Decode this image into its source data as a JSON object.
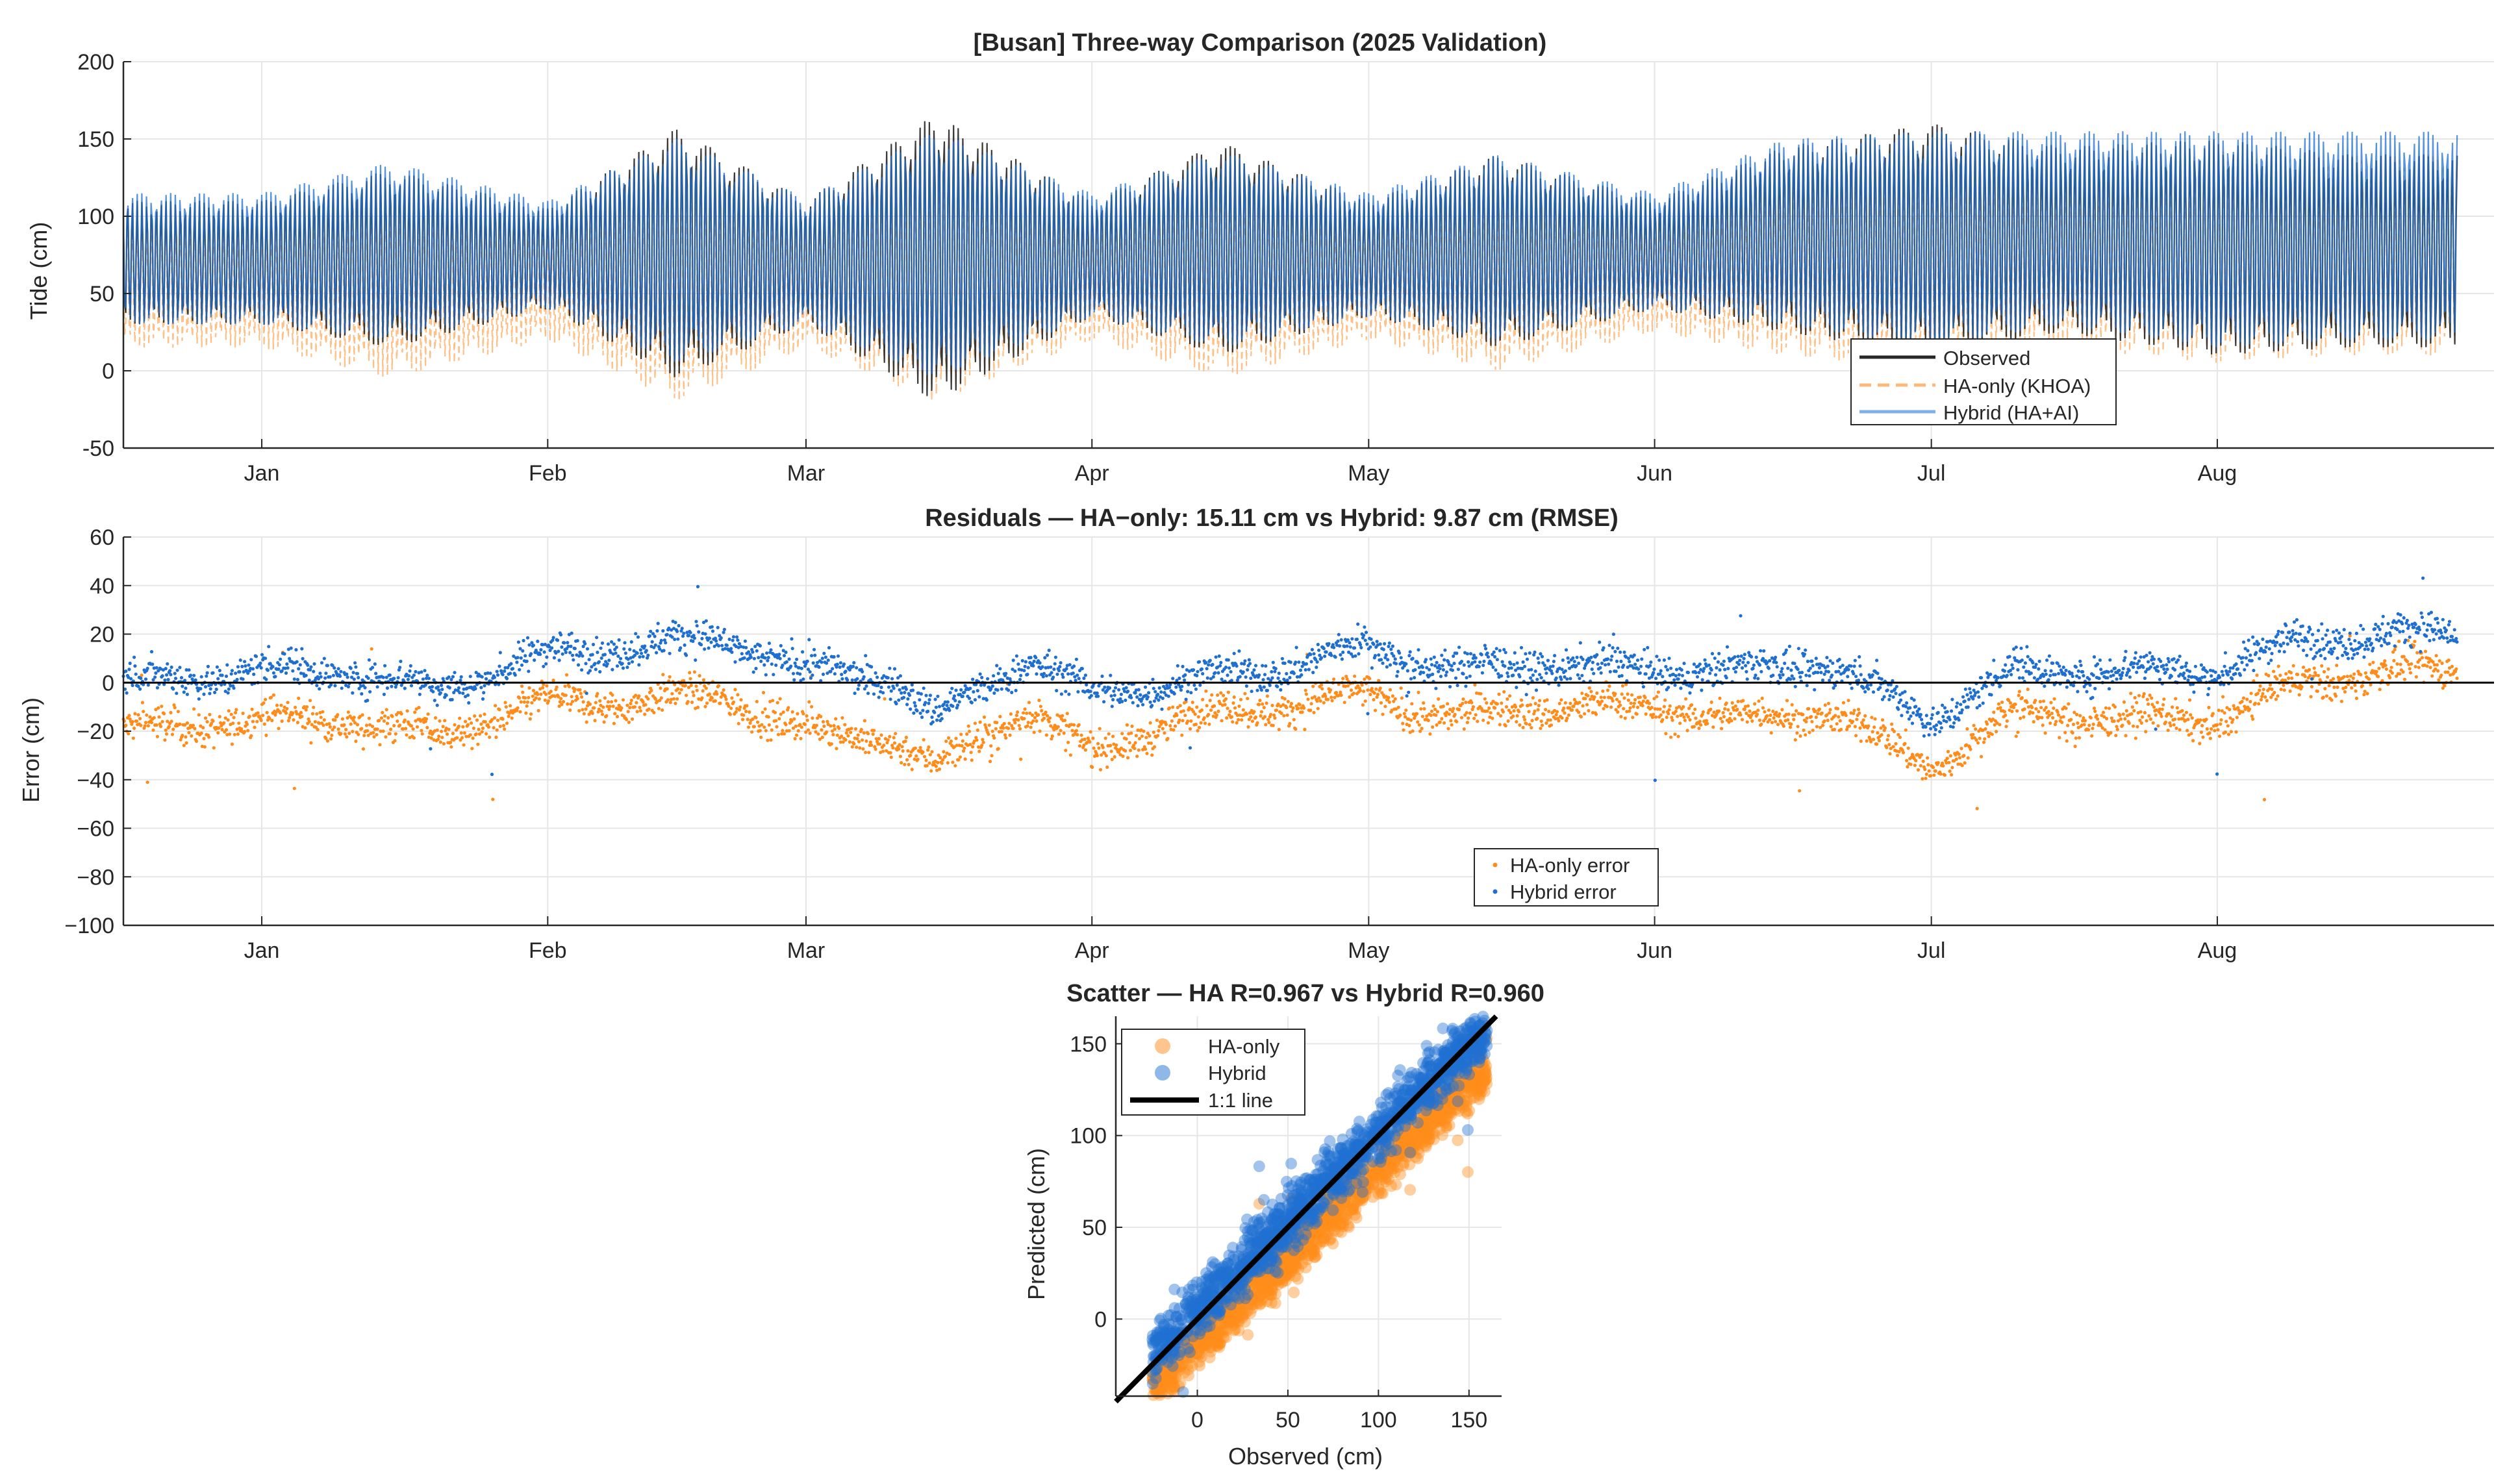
{
  "colors": {
    "observed": "#262626",
    "ha_only": "#ff8c1a",
    "hybrid": "#1f6fd1",
    "grid": "#e6e6e6",
    "axis": "#262626"
  },
  "chart_data": [
    {
      "id": "timeseries",
      "type": "line",
      "title": "[Busan] Three-way Comparison (2025 Validation)",
      "xlabel": "",
      "ylabel": "Tide (cm)",
      "ylim": [
        -50,
        200
      ],
      "yticks": [
        -50,
        0,
        50,
        100,
        150,
        200
      ],
      "x_dates": [
        "2025-01-01",
        "2025-02-01",
        "2025-03-01",
        "2025-04-01",
        "2025-05-01",
        "2025-06-01",
        "2025-07-01",
        "2025-08-01"
      ],
      "xticklabels": [
        "Jan",
        "Feb",
        "Mar",
        "Apr",
        "May",
        "Jun",
        "Jul",
        "Aug"
      ],
      "xlim": [
        "2024-12-17",
        "2025-08-31"
      ],
      "grid": true,
      "legend_position": "bottom-right",
      "series": [
        {
          "name": "Observed",
          "style": "solid",
          "x": [
            "2025-01-01",
            "2025-01-15",
            "2025-02-01",
            "2025-02-15",
            "2025-03-01",
            "2025-03-15",
            "2025-04-01",
            "2025-04-15",
            "2025-05-01",
            "2025-05-15",
            "2025-06-01",
            "2025-06-15",
            "2025-07-01",
            "2025-07-15",
            "2025-08-01",
            "2025-08-15"
          ],
          "upper": [
            110,
            130,
            105,
            157,
            110,
            166,
            110,
            148,
            110,
            140,
            110,
            145,
            160,
            145,
            150,
            140
          ],
          "lower": [
            30,
            15,
            40,
            -5,
            30,
            -20,
            35,
            10,
            35,
            15,
            40,
            25,
            10,
            25,
            10,
            15
          ]
        },
        {
          "name": "HA-only (KHOA)",
          "style": "dashed",
          "x": [
            "2025-01-01",
            "2025-01-15",
            "2025-02-01",
            "2025-02-15",
            "2025-03-01",
            "2025-03-15",
            "2025-04-01",
            "2025-04-15",
            "2025-05-01",
            "2025-05-15",
            "2025-06-01",
            "2025-06-15",
            "2025-07-01",
            "2025-07-15",
            "2025-08-01",
            "2025-08-15"
          ],
          "upper": [
            100,
            120,
            100,
            140,
            100,
            145,
            100,
            132,
            100,
            125,
            100,
            132,
            140,
            135,
            145,
            140
          ],
          "lower": [
            15,
            -5,
            20,
            -20,
            15,
            -20,
            20,
            -5,
            20,
            0,
            25,
            10,
            0,
            15,
            5,
            10
          ]
        },
        {
          "name": "Hybrid (HA+AI)",
          "style": "solid",
          "x": [
            "2025-01-01",
            "2025-01-15",
            "2025-02-01",
            "2025-02-15",
            "2025-03-01",
            "2025-03-15",
            "2025-04-01",
            "2025-04-15",
            "2025-05-01",
            "2025-05-15",
            "2025-06-01",
            "2025-06-15",
            "2025-07-01",
            "2025-07-15",
            "2025-08-01",
            "2025-08-15"
          ],
          "upper": [
            115,
            135,
            110,
            150,
            112,
            155,
            115,
            142,
            115,
            140,
            115,
            150,
            155,
            155,
            155,
            155
          ],
          "lower": [
            30,
            20,
            40,
            5,
            30,
            -5,
            35,
            15,
            35,
            20,
            40,
            30,
            15,
            30,
            15,
            20
          ]
        }
      ]
    },
    {
      "id": "residuals",
      "type": "scatter",
      "title": "Residuals — HA−only: 15.11 cm vs Hybrid: 9.87 cm (RMSE)",
      "xlabel": "",
      "ylabel": "Error (cm)",
      "ylim": [
        -100,
        60
      ],
      "yticks": [
        -100,
        -80,
        -60,
        -40,
        -20,
        0,
        20,
        40,
        60
      ],
      "yticklabels": [
        "−100",
        "−80",
        "−60",
        "−40",
        "−20",
        "0",
        "20",
        "40",
        "60"
      ],
      "x_dates": [
        "2025-01-01",
        "2025-02-01",
        "2025-03-01",
        "2025-04-01",
        "2025-05-01",
        "2025-06-01",
        "2025-07-01",
        "2025-08-01"
      ],
      "xticklabels": [
        "Jan",
        "Feb",
        "Mar",
        "Apr",
        "May",
        "Jun",
        "Jul",
        "Aug"
      ],
      "xlim": [
        "2024-12-17",
        "2025-08-31"
      ],
      "grid": true,
      "zero_line": true,
      "legend_position": "bottom-right",
      "series": [
        {
          "name": "HA-only error",
          "x": [
            "2024-12-17",
            "2025-01-01",
            "2025-01-10",
            "2025-01-20",
            "2025-02-01",
            "2025-02-10",
            "2025-02-20",
            "2025-03-01",
            "2025-03-10",
            "2025-03-15",
            "2025-03-25",
            "2025-04-01",
            "2025-04-10",
            "2025-04-20",
            "2025-05-01",
            "2025-05-10",
            "2025-05-20",
            "2025-06-01",
            "2025-06-10",
            "2025-06-20",
            "2025-07-01",
            "2025-07-10",
            "2025-07-20",
            "2025-08-01",
            "2025-08-10",
            "2025-08-20"
          ],
          "y": [
            -20,
            -15,
            -15,
            -22,
            -8,
            -8,
            -5,
            -20,
            -22,
            -35,
            -10,
            -30,
            -15,
            -10,
            -5,
            -15,
            -10,
            -10,
            -15,
            -12,
            -35,
            -12,
            -15,
            -15,
            0,
            5
          ]
        },
        {
          "name": "Hybrid error",
          "x": [
            "2024-12-17",
            "2025-01-01",
            "2025-01-10",
            "2025-01-20",
            "2025-02-01",
            "2025-02-10",
            "2025-02-20",
            "2025-03-01",
            "2025-03-10",
            "2025-03-15",
            "2025-03-25",
            "2025-04-01",
            "2025-04-10",
            "2025-04-20",
            "2025-05-01",
            "2025-05-10",
            "2025-05-20",
            "2025-06-01",
            "2025-06-10",
            "2025-06-20",
            "2025-07-01",
            "2025-07-10",
            "2025-07-20",
            "2025-08-01",
            "2025-08-10",
            "2025-08-20"
          ],
          "y": [
            0,
            5,
            5,
            -3,
            12,
            15,
            18,
            5,
            3,
            -15,
            10,
            -5,
            0,
            5,
            15,
            5,
            8,
            5,
            5,
            8,
            -15,
            5,
            5,
            5,
            18,
            20
          ]
        }
      ]
    },
    {
      "id": "scatter",
      "type": "scatter",
      "title": "Scatter — HA R=0.967 vs Hybrid R=0.960",
      "xlabel": "Observed (cm)",
      "ylabel": "Predicted (cm)",
      "xlim": [
        -45,
        168
      ],
      "ylim": [
        -42,
        165
      ],
      "xticks": [
        0,
        50,
        100,
        150
      ],
      "yticks": [
        0,
        50,
        100,
        150
      ],
      "grid": true,
      "legend_position": "top-left",
      "reference_line": {
        "name": "1:1 line",
        "slope": 1,
        "intercept": 0
      },
      "series": [
        {
          "name": "HA-only",
          "fit_slope": 0.95,
          "fit_intercept": -14,
          "spread": 7,
          "x_range": [
            -25,
            160
          ]
        },
        {
          "name": "Hybrid",
          "fit_slope": 0.97,
          "fit_intercept": 5,
          "spread": 8,
          "x_range": [
            -25,
            160
          ]
        }
      ]
    }
  ]
}
